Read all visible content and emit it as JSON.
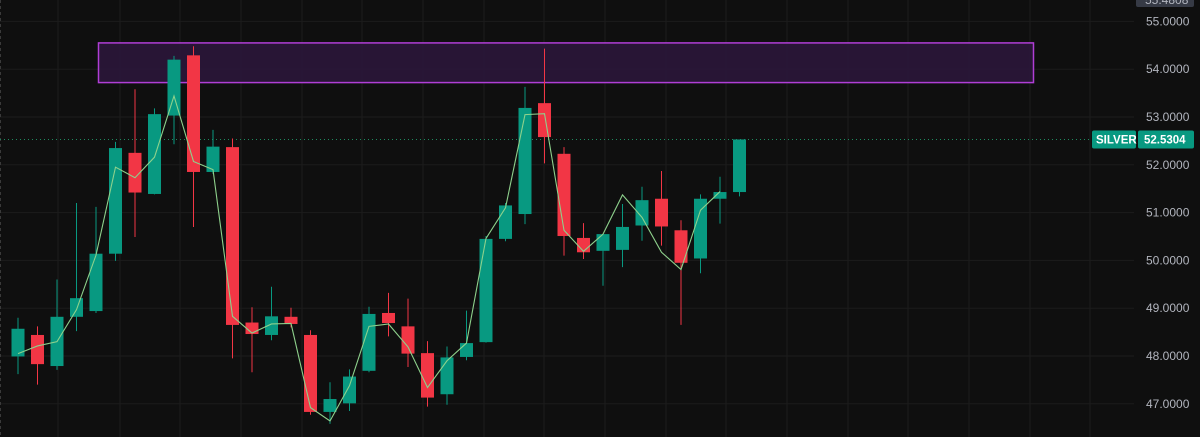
{
  "chart_data": {
    "type": "candlestick",
    "symbol": "SILVER",
    "last_price": 52.5304,
    "last_price_label": "52.5304",
    "top_clipped_label": "55.4808",
    "y_axis_ticks": [
      "55.0000",
      "54.0000",
      "53.0000",
      "52.0000",
      "51.0000",
      "50.0000",
      "49.0000",
      "48.0000",
      "47.0000"
    ],
    "ylim": [
      46.9,
      55.3
    ],
    "grid": true,
    "colors": {
      "background": "#0f0f0f",
      "up": "#089981",
      "down": "#f23645",
      "line": "#8ed18c",
      "zone_border": "#b03ed6",
      "zone_fill": "#2a1638",
      "last_price_line": "#1f8a5f",
      "badge": "#089981",
      "axis_text": "#b2b5be"
    },
    "zone": {
      "low": 53.72,
      "high": 54.55
    },
    "candles": [
      {
        "o": 47.99,
        "h": 48.8,
        "l": 47.62,
        "c": 48.57
      },
      {
        "o": 48.44,
        "h": 48.62,
        "l": 47.4,
        "c": 47.83
      },
      {
        "o": 47.79,
        "h": 49.6,
        "l": 47.71,
        "c": 48.82
      },
      {
        "o": 48.82,
        "h": 51.2,
        "l": 48.52,
        "c": 49.21
      },
      {
        "o": 48.94,
        "h": 51.12,
        "l": 48.9,
        "c": 50.14
      },
      {
        "o": 50.14,
        "h": 52.48,
        "l": 49.99,
        "c": 52.35
      },
      {
        "o": 52.25,
        "h": 53.58,
        "l": 50.49,
        "c": 51.42
      },
      {
        "o": 51.39,
        "h": 53.18,
        "l": 51.38,
        "c": 53.06
      },
      {
        "o": 53.03,
        "h": 54.28,
        "l": 52.43,
        "c": 54.2
      },
      {
        "o": 54.29,
        "h": 54.48,
        "l": 50.7,
        "c": 51.85
      },
      {
        "o": 51.85,
        "h": 52.73,
        "l": 51.81,
        "c": 52.38
      },
      {
        "o": 52.37,
        "h": 52.55,
        "l": 47.95,
        "c": 48.65
      },
      {
        "o": 48.7,
        "h": 49.02,
        "l": 47.66,
        "c": 48.46
      },
      {
        "o": 48.44,
        "h": 49.45,
        "l": 48.33,
        "c": 48.83
      },
      {
        "o": 48.82,
        "h": 49.01,
        "l": 48.6,
        "c": 48.67
      },
      {
        "o": 48.44,
        "h": 48.54,
        "l": 46.77,
        "c": 46.83
      },
      {
        "o": 46.83,
        "h": 47.45,
        "l": 46.58,
        "c": 47.1
      },
      {
        "o": 47.01,
        "h": 47.72,
        "l": 46.85,
        "c": 47.57
      },
      {
        "o": 47.69,
        "h": 49.03,
        "l": 47.66,
        "c": 48.88
      },
      {
        "o": 48.9,
        "h": 49.32,
        "l": 48.41,
        "c": 48.69
      },
      {
        "o": 48.62,
        "h": 49.2,
        "l": 47.77,
        "c": 48.05
      },
      {
        "o": 48.06,
        "h": 48.31,
        "l": 46.94,
        "c": 47.13
      },
      {
        "o": 47.2,
        "h": 48.2,
        "l": 46.98,
        "c": 47.97
      },
      {
        "o": 47.98,
        "h": 48.95,
        "l": 47.91,
        "c": 48.27
      },
      {
        "o": 48.29,
        "h": 50.51,
        "l": 48.28,
        "c": 50.45
      },
      {
        "o": 50.45,
        "h": 51.2,
        "l": 50.4,
        "c": 51.15
      },
      {
        "o": 50.97,
        "h": 53.63,
        "l": 50.76,
        "c": 53.19
      },
      {
        "o": 53.29,
        "h": 54.43,
        "l": 52.03,
        "c": 52.58
      },
      {
        "o": 52.23,
        "h": 52.37,
        "l": 50.1,
        "c": 50.51
      },
      {
        "o": 50.47,
        "h": 50.78,
        "l": 50.03,
        "c": 50.17
      },
      {
        "o": 50.2,
        "h": 50.56,
        "l": 49.47,
        "c": 50.55
      },
      {
        "o": 50.22,
        "h": 51.18,
        "l": 49.86,
        "c": 50.7
      },
      {
        "o": 50.73,
        "h": 51.54,
        "l": 50.41,
        "c": 51.26
      },
      {
        "o": 51.29,
        "h": 51.87,
        "l": 50.31,
        "c": 50.71
      },
      {
        "o": 50.63,
        "h": 50.84,
        "l": 48.65,
        "c": 49.95
      },
      {
        "o": 50.04,
        "h": 51.38,
        "l": 49.73,
        "c": 51.29
      },
      {
        "o": 51.29,
        "h": 51.75,
        "l": 50.77,
        "c": 51.43
      },
      {
        "o": 51.43,
        "h": 52.53,
        "l": 51.34,
        "c": 52.53
      }
    ],
    "line_values": [
      48.05,
      48.21,
      48.3,
      48.97,
      50.11,
      51.95,
      51.73,
      52.16,
      53.44,
      52.07,
      51.9,
      48.83,
      48.48,
      48.67,
      48.68,
      46.92,
      46.64,
      47.38,
      48.62,
      48.67,
      48.19,
      47.34,
      47.9,
      48.27,
      50.46,
      51.1,
      53.05,
      53.07,
      50.63,
      50.19,
      50.55,
      51.37,
      50.9,
      50.17,
      49.81,
      51.05,
      51.44
    ]
  }
}
